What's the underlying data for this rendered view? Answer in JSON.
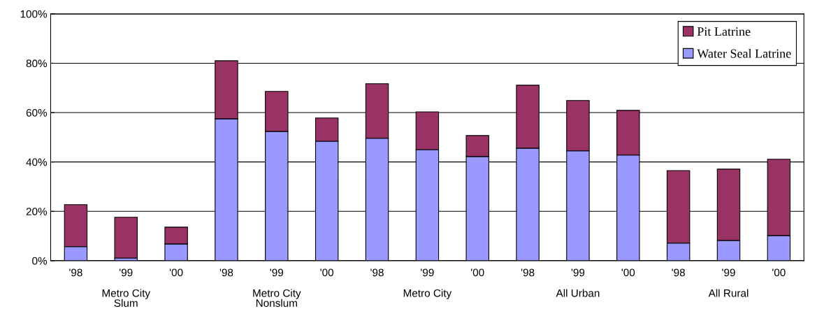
{
  "chart_data": {
    "type": "bar",
    "stacked": true,
    "categories": [
      "'98",
      "'99",
      "'00",
      "'98",
      "'99",
      "'00",
      "'98",
      "'99",
      "'00",
      "'98",
      "'99",
      "'00",
      "'98",
      "'99",
      "'00"
    ],
    "series": [
      {
        "name": "Water Seal Latrine",
        "color": "#9999ff",
        "values": [
          5.7,
          1.1,
          6.8,
          57.5,
          52.4,
          48.4,
          49.6,
          45.0,
          42.2,
          45.6,
          44.5,
          42.8,
          7.1,
          8.2,
          10.2
        ]
      },
      {
        "name": "Pit Latrine",
        "color": "#993366",
        "values": [
          17.0,
          16.5,
          6.8,
          23.5,
          16.2,
          9.4,
          22.1,
          15.3,
          8.5,
          25.5,
          20.4,
          18.1,
          29.4,
          28.9,
          30.9
        ]
      }
    ],
    "ylim": [
      0,
      100
    ],
    "yticks": [
      {
        "value": 0,
        "label": "0%"
      },
      {
        "value": 20,
        "label": "20%"
      },
      {
        "value": 40,
        "label": "40%"
      },
      {
        "value": 60,
        "label": "60%"
      },
      {
        "value": 80,
        "label": "80%"
      },
      {
        "value": 100,
        "label": "100%"
      }
    ],
    "grid": "y",
    "legend": "top right",
    "annotations": [
      "Metro City\nSlum",
      "Metro City\nNonslum",
      "Metro City",
      "All Urban",
      "All Rural"
    ]
  }
}
